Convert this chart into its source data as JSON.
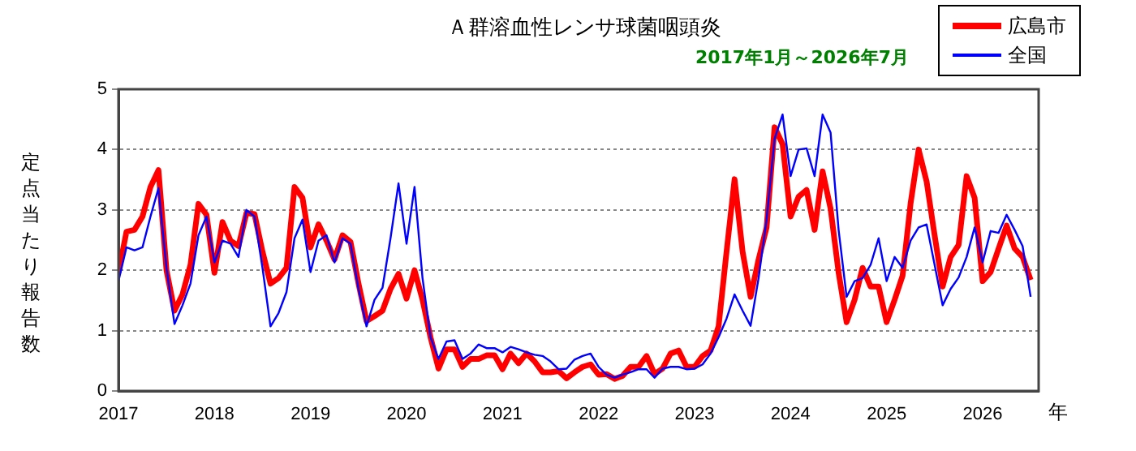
{
  "chart_data": {
    "type": "line",
    "title": "Ａ群溶血性レンサ球菌咽頭炎",
    "subtitle": "2017年1月～2026年7月",
    "ylabel": "定点当たり報告数",
    "xlabel": "年",
    "x": [
      "2017-01",
      "2017-02",
      "2017-03",
      "2017-04",
      "2017-05",
      "2017-06",
      "2017-07",
      "2017-08",
      "2017-09",
      "2017-10",
      "2017-11",
      "2017-12",
      "2018-01",
      "2018-02",
      "2018-03",
      "2018-04",
      "2018-05",
      "2018-06",
      "2018-07",
      "2018-08",
      "2018-09",
      "2018-10",
      "2018-11",
      "2018-12",
      "2019-01",
      "2019-02",
      "2019-03",
      "2019-04",
      "2019-05",
      "2019-06",
      "2019-07",
      "2019-08",
      "2019-09",
      "2019-10",
      "2019-11",
      "2019-12",
      "2020-01",
      "2020-02",
      "2020-03",
      "2020-04",
      "2020-05",
      "2020-06",
      "2020-07",
      "2020-08",
      "2020-09",
      "2020-10",
      "2020-11",
      "2020-12",
      "2021-01",
      "2021-02",
      "2021-03",
      "2021-04",
      "2021-05",
      "2021-06",
      "2021-07",
      "2021-08",
      "2021-09",
      "2021-10",
      "2021-11",
      "2021-12",
      "2022-01",
      "2022-02",
      "2022-03",
      "2022-04",
      "2022-05",
      "2022-06",
      "2022-07",
      "2022-08",
      "2022-09",
      "2022-10",
      "2022-11",
      "2022-12",
      "2023-01",
      "2023-02",
      "2023-03",
      "2023-04",
      "2023-05",
      "2023-06",
      "2023-07",
      "2023-08",
      "2023-09",
      "2023-10",
      "2023-11",
      "2023-12",
      "2024-01",
      "2024-02",
      "2024-03",
      "2024-04",
      "2024-05",
      "2024-06",
      "2024-07",
      "2024-08",
      "2024-09",
      "2024-10",
      "2024-11",
      "2024-12",
      "2025-01",
      "2025-02",
      "2025-03",
      "2025-04",
      "2025-05",
      "2025-06",
      "2025-07",
      "2025-08",
      "2025-09",
      "2025-10",
      "2025-11",
      "2025-12",
      "2026-01",
      "2026-02",
      "2026-03",
      "2026-04",
      "2026-05",
      "2026-06",
      "2026-07"
    ],
    "series": [
      {
        "name": "広島市",
        "color": "#ff0000",
        "values": [
          1.96,
          2.64,
          2.67,
          2.89,
          3.38,
          3.66,
          2.0,
          1.33,
          1.6,
          2.09,
          3.1,
          2.92,
          1.96,
          2.8,
          2.49,
          2.4,
          2.95,
          2.93,
          2.31,
          1.78,
          1.87,
          2.04,
          3.38,
          3.2,
          2.38,
          2.76,
          2.49,
          2.18,
          2.58,
          2.47,
          1.78,
          1.16,
          1.24,
          1.33,
          1.69,
          1.94,
          1.53,
          2.0,
          1.51,
          0.89,
          0.37,
          0.69,
          0.69,
          0.4,
          0.53,
          0.53,
          0.59,
          0.59,
          0.36,
          0.62,
          0.46,
          0.62,
          0.49,
          0.31,
          0.31,
          0.33,
          0.21,
          0.31,
          0.4,
          0.44,
          0.27,
          0.28,
          0.2,
          0.25,
          0.4,
          0.4,
          0.58,
          0.28,
          0.37,
          0.62,
          0.67,
          0.4,
          0.4,
          0.58,
          0.67,
          1.07,
          2.31,
          3.51,
          2.31,
          1.56,
          2.18,
          2.71,
          4.37,
          4.09,
          2.89,
          3.22,
          3.33,
          2.67,
          3.64,
          3.02,
          1.96,
          1.14,
          1.51,
          2.04,
          1.73,
          1.73,
          1.14,
          1.51,
          1.91,
          3.11,
          4.0,
          3.47,
          2.58,
          1.73,
          2.22,
          2.42,
          3.56,
          3.2,
          1.82,
          1.97,
          2.36,
          2.74,
          2.36,
          2.22,
          1.84
        ]
      },
      {
        "name": "全国",
        "color": "#0000ff",
        "values": [
          1.82,
          2.38,
          2.33,
          2.38,
          2.89,
          3.36,
          2.04,
          1.11,
          1.42,
          1.78,
          2.58,
          2.89,
          2.13,
          2.49,
          2.44,
          2.22,
          3.0,
          2.89,
          2.04,
          1.07,
          1.29,
          1.64,
          2.53,
          2.84,
          1.97,
          2.49,
          2.58,
          2.13,
          2.53,
          2.44,
          1.69,
          1.07,
          1.51,
          1.71,
          2.53,
          3.44,
          2.44,
          3.38,
          1.87,
          0.89,
          0.53,
          0.82,
          0.84,
          0.53,
          0.62,
          0.77,
          0.71,
          0.71,
          0.64,
          0.73,
          0.69,
          0.64,
          0.6,
          0.58,
          0.49,
          0.36,
          0.37,
          0.52,
          0.58,
          0.62,
          0.4,
          0.27,
          0.22,
          0.27,
          0.31,
          0.36,
          0.36,
          0.22,
          0.37,
          0.4,
          0.4,
          0.36,
          0.37,
          0.44,
          0.62,
          0.89,
          1.2,
          1.6,
          1.33,
          1.08,
          1.87,
          2.84,
          4.18,
          4.58,
          3.56,
          4.0,
          4.02,
          3.56,
          4.58,
          4.28,
          2.67,
          1.56,
          1.82,
          1.87,
          2.09,
          2.53,
          1.82,
          2.22,
          2.04,
          2.49,
          2.71,
          2.76,
          2.09,
          1.42,
          1.69,
          1.88,
          2.22,
          2.71,
          2.13,
          2.65,
          2.62,
          2.92,
          2.67,
          2.4,
          1.56
        ]
      }
    ],
    "xlim": [
      "2017-01",
      "2026-08"
    ],
    "xticks": [
      "2017",
      "2018",
      "2019",
      "2020",
      "2021",
      "2022",
      "2023",
      "2024",
      "2025",
      "2026"
    ],
    "ylim": [
      0,
      5
    ],
    "yticks": [
      0,
      1,
      2,
      3,
      4,
      5
    ],
    "grid": "y",
    "legend": "top right",
    "marker": "none",
    "line_style": "solid"
  }
}
